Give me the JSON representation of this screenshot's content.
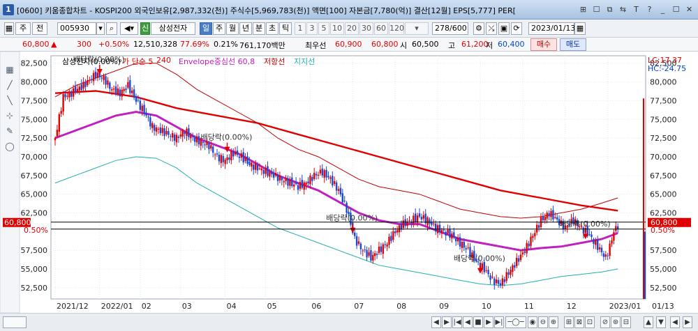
{
  "window": {
    "badge": "1",
    "title": "[0600] 키움종합차트 - KOSPI200 외국인보유[2,987,332(천)] 주식수[5,969,783(천)] 액면[100] 자본금[7,780(억)] 결산[12월] EPS[5,777] PER[",
    "controls": [
      "⊞",
      "☐",
      "⧉",
      "⇆",
      "T",
      "?",
      "_",
      "☐",
      "✕"
    ]
  },
  "toolbar": {
    "tab_stock": "주",
    "tab_prev": "전",
    "code": "005930",
    "stock_name": "삼성전자",
    "sin_badge": "신",
    "periods": [
      "일",
      "주",
      "월",
      "년",
      "분",
      "초",
      "틱"
    ],
    "intervals": [
      "1",
      "3",
      "5",
      "10",
      "20",
      "30",
      "60",
      "120"
    ],
    "count": "278/600",
    "date": "2023/01/13"
  },
  "price": {
    "current": "60,800",
    "change_arrow": "▲",
    "change": "300",
    "change_pct": "+0.50%",
    "volume": "12,510,328",
    "volume_ratio": "77.69%",
    "turnover_pct": "0.21%",
    "trade_value": "761,170백만",
    "priority_label": "최우선",
    "bid": "60,900",
    "ask": "60,800",
    "open_label": "시",
    "open": "60,500",
    "high_label": "고",
    "high": "61,200",
    "low_label": "저",
    "low": "60,400",
    "buy_label": "매수",
    "sell_label": "매도"
  },
  "chart_data": {
    "type": "candlestick",
    "legend": [
      {
        "text": "삼성전자(0.00%)",
        "color": "#000000"
      },
      {
        "text": "가 단순 5",
        "color": "#e60000"
      },
      {
        "text": "240",
        "color": "#e60000"
      },
      {
        "text": "Envelope중심선 60,8",
        "color": "#c020c0"
      },
      {
        "text": "저항선",
        "color": "#c00000"
      },
      {
        "text": "지지선",
        "color": "#20b0b0"
      }
    ],
    "y_ticks": [
      "82,500",
      "80,000",
      "77,500",
      "75,000",
      "72,500",
      "70,000",
      "67,500",
      "65,000",
      "62,500",
      "57,500",
      "55,000",
      "52,500"
    ],
    "y_tick_values": [
      82500,
      80000,
      77500,
      75000,
      72500,
      70000,
      67500,
      65000,
      62500,
      57500,
      55000,
      52500
    ],
    "ylim": [
      51000,
      83500
    ],
    "x_labels": [
      "2021/12",
      "2022/01",
      "02",
      "03",
      "04",
      "05",
      "06",
      "07",
      "08",
      "09",
      "10",
      "11",
      "12",
      "2023/01"
    ],
    "x_label_right": "01/13",
    "lc": "LC:17.37",
    "hc": "HC:-24.75",
    "current_price_label": "60,800",
    "current_pct_label": "0.50%",
    "current_price": 60800,
    "dividend_label": "배당락(0.00%)",
    "dividend_markers": [
      {
        "date": "2021/12",
        "price": 80800
      },
      {
        "date": "03",
        "price": 70400
      },
      {
        "date": "07",
        "price": 59600
      },
      {
        "date": "10",
        "price": 54200
      },
      {
        "date": "12",
        "price": 58800
      }
    ],
    "price_path": [
      [
        0,
        72500
      ],
      [
        4,
        78000
      ],
      [
        8,
        78500
      ],
      [
        14,
        79500
      ],
      [
        20,
        81000
      ],
      [
        24,
        80500
      ],
      [
        28,
        79000
      ],
      [
        32,
        78500
      ],
      [
        36,
        79500
      ],
      [
        40,
        77500
      ],
      [
        44,
        76000
      ],
      [
        48,
        74000
      ],
      [
        52,
        73500
      ],
      [
        56,
        73000
      ],
      [
        60,
        72500
      ],
      [
        64,
        73500
      ],
      [
        68,
        72500
      ],
      [
        72,
        72000
      ],
      [
        76,
        71500
      ],
      [
        80,
        70000
      ],
      [
        84,
        69500
      ],
      [
        88,
        70500
      ],
      [
        92,
        70000
      ],
      [
        96,
        69000
      ],
      [
        100,
        68500
      ],
      [
        104,
        68000
      ],
      [
        108,
        67500
      ],
      [
        112,
        67000
      ],
      [
        116,
        66500
      ],
      [
        120,
        66000
      ],
      [
        124,
        66500
      ],
      [
        128,
        67500
      ],
      [
        132,
        68000
      ],
      [
        136,
        67000
      ],
      [
        140,
        65500
      ],
      [
        144,
        63000
      ],
      [
        148,
        59000
      ],
      [
        152,
        57500
      ],
      [
        156,
        56500
      ],
      [
        160,
        57500
      ],
      [
        164,
        58500
      ],
      [
        168,
        60000
      ],
      [
        172,
        61000
      ],
      [
        176,
        61500
      ],
      [
        180,
        62000
      ],
      [
        184,
        61500
      ],
      [
        188,
        60500
      ],
      [
        192,
        60000
      ],
      [
        196,
        59500
      ],
      [
        200,
        58500
      ],
      [
        204,
        57500
      ],
      [
        208,
        56000
      ],
      [
        212,
        55000
      ],
      [
        216,
        53500
      ],
      [
        220,
        53000
      ],
      [
        224,
        54500
      ],
      [
        228,
        56000
      ],
      [
        232,
        57500
      ],
      [
        236,
        59500
      ],
      [
        240,
        61500
      ],
      [
        244,
        62500
      ],
      [
        248,
        61500
      ],
      [
        252,
        60500
      ],
      [
        256,
        61500
      ],
      [
        260,
        60500
      ],
      [
        264,
        59500
      ],
      [
        268,
        58000
      ],
      [
        272,
        56500
      ],
      [
        274,
        58000
      ],
      [
        276,
        60000
      ],
      [
        278,
        60800
      ]
    ],
    "ma5_red_path": [
      [
        0,
        78500
      ],
      [
        20,
        78800
      ],
      [
        40,
        78000
      ],
      [
        60,
        76500
      ],
      [
        80,
        75500
      ],
      [
        100,
        74500
      ],
      [
        120,
        73000
      ],
      [
        140,
        71500
      ],
      [
        160,
        70000
      ],
      [
        180,
        68500
      ],
      [
        200,
        67000
      ],
      [
        220,
        65500
      ],
      [
        240,
        64500
      ],
      [
        260,
        63500
      ],
      [
        278,
        62800
      ]
    ],
    "envelope_center_path": [
      [
        0,
        72500
      ],
      [
        10,
        73500
      ],
      [
        20,
        74500
      ],
      [
        30,
        75500
      ],
      [
        40,
        76000
      ],
      [
        50,
        75500
      ],
      [
        60,
        74000
      ],
      [
        70,
        72500
      ],
      [
        80,
        71500
      ],
      [
        90,
        70500
      ],
      [
        100,
        69000
      ],
      [
        110,
        67500
      ],
      [
        120,
        66500
      ],
      [
        130,
        65500
      ],
      [
        140,
        64000
      ],
      [
        150,
        62500
      ],
      [
        160,
        61500
      ],
      [
        170,
        61000
      ],
      [
        180,
        61000
      ],
      [
        190,
        60000
      ],
      [
        200,
        59000
      ],
      [
        210,
        58500
      ],
      [
        220,
        58000
      ],
      [
        230,
        57500
      ],
      [
        240,
        57800
      ],
      [
        250,
        58000
      ],
      [
        260,
        58500
      ],
      [
        270,
        59000
      ],
      [
        278,
        59800
      ]
    ],
    "resistance_path": [
      [
        0,
        78000
      ],
      [
        10,
        79500
      ],
      [
        20,
        80500
      ],
      [
        30,
        81500
      ],
      [
        40,
        82500
      ],
      [
        50,
        82500
      ],
      [
        60,
        81000
      ],
      [
        70,
        79000
      ],
      [
        80,
        77500
      ],
      [
        90,
        76000
      ],
      [
        100,
        74500
      ],
      [
        110,
        72500
      ],
      [
        120,
        71000
      ],
      [
        130,
        70000
      ],
      [
        140,
        68500
      ],
      [
        150,
        67000
      ],
      [
        160,
        66000
      ],
      [
        170,
        65500
      ],
      [
        180,
        65000
      ],
      [
        190,
        64000
      ],
      [
        200,
        63000
      ],
      [
        210,
        62500
      ],
      [
        220,
        62000
      ],
      [
        230,
        61800
      ],
      [
        240,
        62000
      ],
      [
        250,
        62500
      ],
      [
        260,
        63000
      ],
      [
        270,
        63800
      ],
      [
        278,
        64500
      ]
    ],
    "support_path": [
      [
        0,
        66500
      ],
      [
        10,
        67500
      ],
      [
        20,
        68500
      ],
      [
        30,
        69500
      ],
      [
        40,
        70000
      ],
      [
        50,
        69800
      ],
      [
        60,
        68500
      ],
      [
        70,
        66500
      ],
      [
        80,
        65000
      ],
      [
        90,
        63500
      ],
      [
        100,
        62000
      ],
      [
        110,
        60500
      ],
      [
        120,
        59500
      ],
      [
        130,
        58500
      ],
      [
        140,
        57500
      ],
      [
        150,
        56500
      ],
      [
        160,
        55500
      ],
      [
        170,
        55000
      ],
      [
        180,
        54500
      ],
      [
        190,
        54000
      ],
      [
        200,
        53500
      ],
      [
        210,
        53000
      ],
      [
        220,
        52800
      ],
      [
        230,
        53000
      ],
      [
        240,
        53500
      ],
      [
        250,
        54000
      ],
      [
        260,
        54300
      ],
      [
        270,
        54600
      ],
      [
        278,
        55000
      ]
    ]
  },
  "statusbar": {
    "items": [
      "◀",
      "▶",
      "|◀",
      "◀",
      "■",
      "▶",
      "▶|",
      "─◯─",
      "◉",
      "⊖",
      "⊕",
      "⊞",
      "⊠",
      "⊡",
      "⊘",
      "⊛",
      "⊟"
    ]
  },
  "colors": {
    "up": "#e60000",
    "down": "#1848d8",
    "envelope": "#c020c0",
    "resistance": "#c00000",
    "ma": "#e00000",
    "support": "#20b0b0"
  }
}
